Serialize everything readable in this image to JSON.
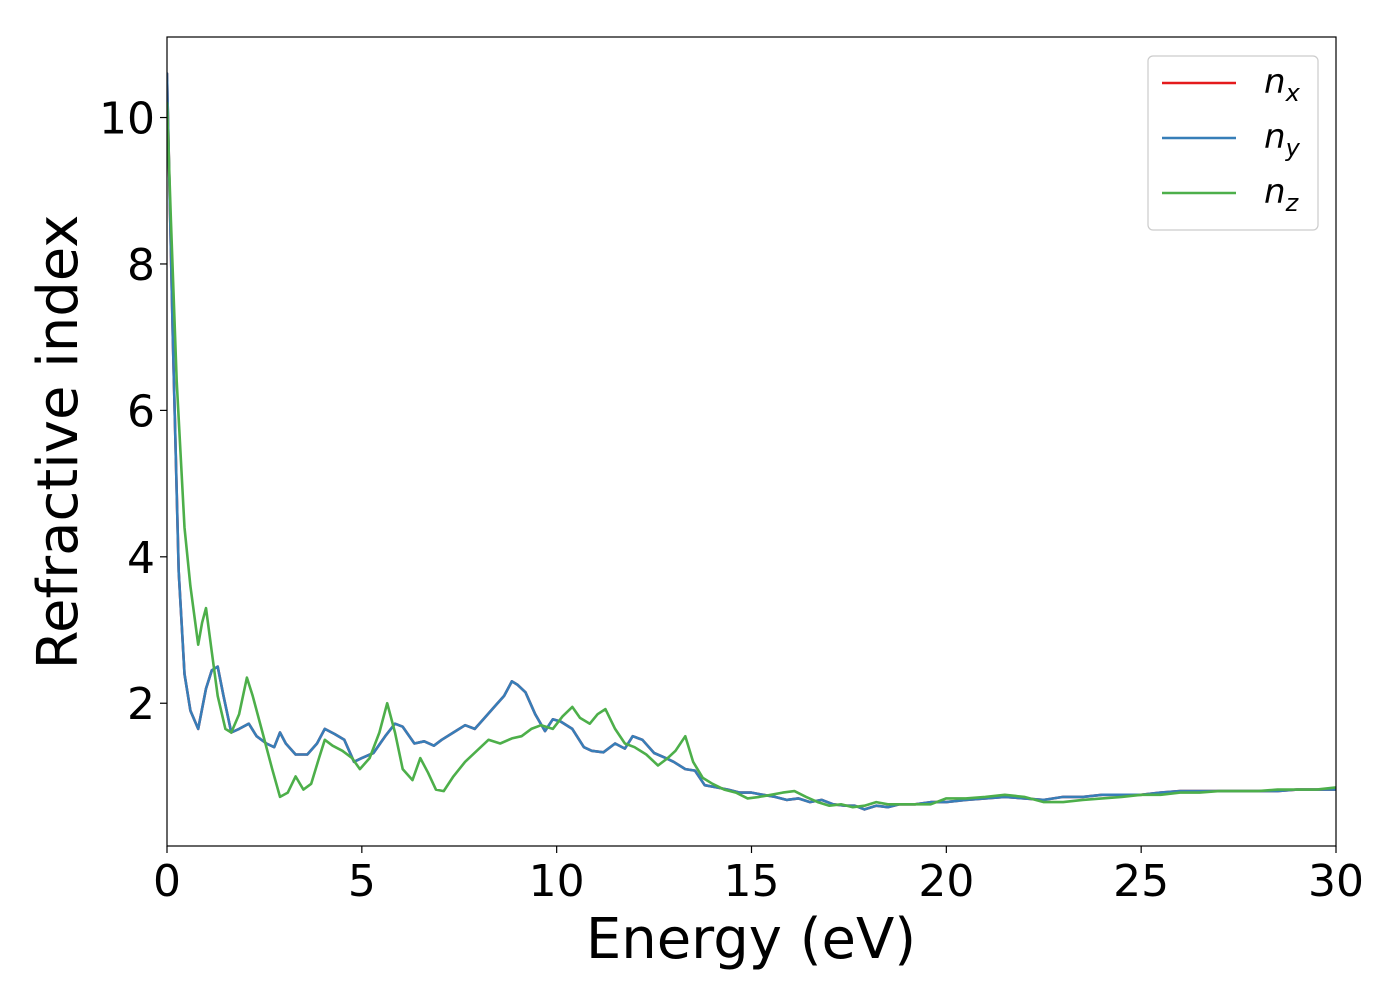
{
  "chart_data": {
    "type": "line",
    "title": "",
    "xlabel": "Energy (eV)",
    "ylabel": "Refractive index",
    "xlim": [
      0,
      30
    ],
    "ylim": [
      0.05,
      11.1
    ],
    "xticks": [
      "0",
      "5",
      "10",
      "15",
      "20",
      "25",
      "30"
    ],
    "yticks": [
      "2",
      "4",
      "6",
      "8",
      "10"
    ],
    "legend_position": "top-right",
    "grid": false,
    "series": [
      {
        "name": "n",
        "subscript": "x",
        "color": "#e41a1c",
        "x": [
          0,
          0.15,
          0.3,
          0.45,
          0.6,
          0.8,
          1.0,
          1.15,
          1.3,
          1.45,
          1.65,
          1.85,
          2.1,
          2.3,
          2.55,
          2.75,
          2.9,
          3.05,
          3.3,
          3.6,
          3.85,
          4.05,
          4.3,
          4.55,
          4.8,
          5.0,
          5.3,
          5.6,
          5.85,
          6.05,
          6.35,
          6.6,
          6.85,
          7.05,
          7.35,
          7.65,
          7.9,
          8.15,
          8.4,
          8.65,
          8.85,
          9.0,
          9.2,
          9.45,
          9.7,
          9.9,
          10.1,
          10.4,
          10.7,
          10.9,
          11.2,
          11.5,
          11.75,
          11.95,
          12.2,
          12.5,
          12.8,
          13.0,
          13.3,
          13.55,
          13.8,
          14.1,
          14.4,
          14.7,
          15.0,
          15.3,
          15.6,
          15.9,
          16.2,
          16.5,
          16.8,
          17.1,
          17.4,
          17.65,
          17.9,
          18.2,
          18.5,
          18.8,
          19.2,
          19.6,
          20.0,
          20.5,
          21.0,
          21.5,
          22.0,
          22.5,
          23.0,
          23.5,
          24.0,
          24.5,
          25.0,
          25.5,
          26.0,
          26.5,
          27.0,
          27.5,
          28.0,
          28.5,
          29.0,
          29.5,
          30.0
        ],
        "y": [
          10.6,
          7.0,
          3.8,
          2.4,
          1.9,
          1.65,
          2.2,
          2.45,
          2.5,
          2.1,
          1.6,
          1.65,
          1.72,
          1.55,
          1.45,
          1.4,
          1.6,
          1.45,
          1.3,
          1.3,
          1.45,
          1.65,
          1.58,
          1.5,
          1.2,
          1.25,
          1.32,
          1.55,
          1.72,
          1.68,
          1.45,
          1.48,
          1.42,
          1.5,
          1.6,
          1.7,
          1.65,
          1.8,
          1.95,
          2.1,
          2.3,
          2.25,
          2.15,
          1.85,
          1.62,
          1.78,
          1.75,
          1.65,
          1.4,
          1.35,
          1.33,
          1.45,
          1.38,
          1.55,
          1.5,
          1.32,
          1.25,
          1.2,
          1.1,
          1.08,
          0.88,
          0.85,
          0.82,
          0.78,
          0.78,
          0.75,
          0.72,
          0.68,
          0.7,
          0.65,
          0.68,
          0.62,
          0.6,
          0.6,
          0.55,
          0.6,
          0.58,
          0.62,
          0.62,
          0.65,
          0.65,
          0.68,
          0.7,
          0.72,
          0.7,
          0.68,
          0.72,
          0.72,
          0.75,
          0.75,
          0.75,
          0.78,
          0.8,
          0.8,
          0.8,
          0.8,
          0.8,
          0.8,
          0.82,
          0.82,
          0.82
        ]
      },
      {
        "name": "n",
        "subscript": "y",
        "color": "#377eb8",
        "x": [
          0,
          0.15,
          0.3,
          0.45,
          0.6,
          0.8,
          1.0,
          1.15,
          1.3,
          1.45,
          1.65,
          1.85,
          2.1,
          2.3,
          2.55,
          2.75,
          2.9,
          3.05,
          3.3,
          3.6,
          3.85,
          4.05,
          4.3,
          4.55,
          4.8,
          5.0,
          5.3,
          5.6,
          5.85,
          6.05,
          6.35,
          6.6,
          6.85,
          7.05,
          7.35,
          7.65,
          7.9,
          8.15,
          8.4,
          8.65,
          8.85,
          9.0,
          9.2,
          9.45,
          9.7,
          9.9,
          10.1,
          10.4,
          10.7,
          10.9,
          11.2,
          11.5,
          11.75,
          11.95,
          12.2,
          12.5,
          12.8,
          13.0,
          13.3,
          13.55,
          13.8,
          14.1,
          14.4,
          14.7,
          15.0,
          15.3,
          15.6,
          15.9,
          16.2,
          16.5,
          16.8,
          17.1,
          17.4,
          17.65,
          17.9,
          18.2,
          18.5,
          18.8,
          19.2,
          19.6,
          20.0,
          20.5,
          21.0,
          21.5,
          22.0,
          22.5,
          23.0,
          23.5,
          24.0,
          24.5,
          25.0,
          25.5,
          26.0,
          26.5,
          27.0,
          27.5,
          28.0,
          28.5,
          29.0,
          29.5,
          30.0
        ],
        "y": [
          10.6,
          7.0,
          3.8,
          2.4,
          1.9,
          1.65,
          2.2,
          2.45,
          2.5,
          2.1,
          1.6,
          1.65,
          1.72,
          1.55,
          1.45,
          1.4,
          1.6,
          1.45,
          1.3,
          1.3,
          1.45,
          1.65,
          1.58,
          1.5,
          1.2,
          1.25,
          1.32,
          1.55,
          1.72,
          1.68,
          1.45,
          1.48,
          1.42,
          1.5,
          1.6,
          1.7,
          1.65,
          1.8,
          1.95,
          2.1,
          2.3,
          2.25,
          2.15,
          1.85,
          1.62,
          1.78,
          1.75,
          1.65,
          1.4,
          1.35,
          1.33,
          1.45,
          1.38,
          1.55,
          1.5,
          1.32,
          1.25,
          1.2,
          1.1,
          1.08,
          0.88,
          0.85,
          0.82,
          0.78,
          0.78,
          0.75,
          0.72,
          0.68,
          0.7,
          0.65,
          0.68,
          0.62,
          0.6,
          0.6,
          0.55,
          0.6,
          0.58,
          0.62,
          0.62,
          0.65,
          0.65,
          0.68,
          0.7,
          0.72,
          0.7,
          0.68,
          0.72,
          0.72,
          0.75,
          0.75,
          0.75,
          0.78,
          0.8,
          0.8,
          0.8,
          0.8,
          0.8,
          0.8,
          0.82,
          0.82,
          0.82
        ]
      },
      {
        "name": "n",
        "subscript": "z",
        "color": "#4daf4a",
        "x": [
          0,
          0.1,
          0.25,
          0.45,
          0.6,
          0.8,
          0.9,
          1.0,
          1.15,
          1.3,
          1.5,
          1.65,
          1.85,
          2.05,
          2.2,
          2.45,
          2.7,
          2.9,
          3.1,
          3.3,
          3.5,
          3.7,
          3.9,
          4.05,
          4.25,
          4.5,
          4.75,
          4.95,
          5.2,
          5.45,
          5.65,
          5.85,
          6.05,
          6.3,
          6.5,
          6.7,
          6.9,
          7.1,
          7.35,
          7.65,
          7.95,
          8.25,
          8.55,
          8.85,
          9.1,
          9.35,
          9.6,
          9.9,
          10.15,
          10.4,
          10.6,
          10.85,
          11.05,
          11.25,
          11.5,
          11.75,
          12.0,
          12.3,
          12.6,
          12.85,
          13.05,
          13.3,
          13.5,
          13.75,
          14.0,
          14.3,
          14.6,
          14.9,
          15.2,
          15.5,
          15.8,
          16.1,
          16.4,
          16.7,
          17.0,
          17.3,
          17.6,
          17.9,
          18.2,
          18.5,
          18.8,
          19.2,
          19.6,
          20.0,
          20.5,
          21.0,
          21.5,
          22.0,
          22.5,
          23.0,
          23.5,
          24.0,
          24.5,
          25.0,
          25.5,
          26.0,
          26.5,
          27.0,
          27.5,
          28.0,
          28.5,
          29.0,
          29.5,
          30.0
        ],
        "y": [
          10.2,
          8.6,
          6.4,
          4.4,
          3.6,
          2.8,
          3.1,
          3.3,
          2.7,
          2.1,
          1.65,
          1.6,
          1.85,
          2.35,
          2.1,
          1.6,
          1.1,
          0.72,
          0.78,
          1.0,
          0.82,
          0.9,
          1.25,
          1.5,
          1.42,
          1.35,
          1.25,
          1.1,
          1.25,
          1.6,
          2.0,
          1.6,
          1.1,
          0.95,
          1.25,
          1.05,
          0.82,
          0.8,
          1.0,
          1.2,
          1.35,
          1.5,
          1.45,
          1.52,
          1.55,
          1.65,
          1.7,
          1.65,
          1.82,
          1.95,
          1.8,
          1.72,
          1.85,
          1.92,
          1.65,
          1.45,
          1.4,
          1.3,
          1.15,
          1.25,
          1.35,
          1.55,
          1.2,
          0.98,
          0.9,
          0.82,
          0.78,
          0.7,
          0.72,
          0.75,
          0.78,
          0.8,
          0.72,
          0.65,
          0.6,
          0.62,
          0.58,
          0.6,
          0.65,
          0.62,
          0.62,
          0.62,
          0.62,
          0.7,
          0.7,
          0.72,
          0.75,
          0.72,
          0.65,
          0.65,
          0.68,
          0.7,
          0.72,
          0.75,
          0.75,
          0.78,
          0.78,
          0.8,
          0.8,
          0.8,
          0.82,
          0.82,
          0.82,
          0.85
        ]
      }
    ]
  }
}
